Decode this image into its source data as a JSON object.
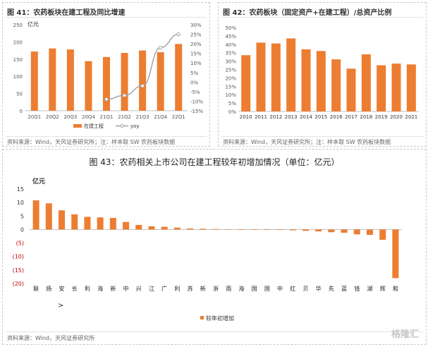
{
  "panel1": {
    "title": "图 41：农药板块在建工程及同比增速",
    "source": "资料来源：Wind，天风证券研究所；注：样本取 SW 农药板块数据"
  },
  "panel2": {
    "title": "图 42：农药板块（固定资产+在建工程）/总资产比例",
    "source": "资料来源：Wind，天风证券研究所；注：样本取 SW 农药板块数据"
  },
  "panel3": {
    "title": "图 43：农药相关上市公司在建工程较年初增加情况（单位：亿元）",
    "source": "资料来源：Wind，天风证券研究所",
    "arrow_text": ">"
  },
  "watermark": "格隆汇",
  "chart_data": [
    {
      "type": "bar",
      "unit_label": "亿元",
      "categories": [
        "20Q1",
        "20Q2",
        "20Q3",
        "20Q4",
        "21Q1",
        "21Q2",
        "21Q3",
        "21Q4",
        "22Q1"
      ],
      "series": [
        {
          "name": "在建工程",
          "type": "bar",
          "color": "#ED7D31",
          "values": [
            172,
            181,
            178,
            144,
            156,
            168,
            175,
            170,
            194
          ]
        },
        {
          "name": "yoy",
          "type": "line",
          "axis": "right",
          "color": "#A5A5A5",
          "values": [
            null,
            null,
            null,
            null,
            -9,
            -7,
            -2,
            18,
            25
          ]
        }
      ],
      "ylim": [
        0,
        250
      ],
      "yticks": [
        0,
        50,
        100,
        150,
        200,
        250
      ],
      "y2lim": [
        -15,
        30
      ],
      "y2ticks": [
        "-15%",
        "-10%",
        "-5%",
        "0%",
        "5%",
        "10%",
        "15%",
        "20%",
        "25%",
        "30%"
      ],
      "legend": [
        "在建工程",
        "yoy"
      ],
      "legend_position": "bottom"
    },
    {
      "type": "bar",
      "categories": [
        "2010",
        "2011",
        "2012",
        "2013",
        "2014",
        "2015",
        "2016",
        "2017",
        "2018",
        "2019",
        "2020",
        "2021"
      ],
      "series": [
        {
          "color": "#ED7D31",
          "values": [
            33.5,
            41,
            40.5,
            43.5,
            37,
            36,
            31,
            25.5,
            34,
            27.5,
            28.5,
            28
          ]
        }
      ],
      "ylim": [
        0,
        50
      ],
      "yticks": [
        "0%",
        "5%",
        "10%",
        "15%",
        "20%",
        "25%",
        "30%",
        "35%",
        "40%",
        "45%",
        "50%"
      ]
    },
    {
      "type": "bar",
      "unit_label": "亿元",
      "categories": [
        "联",
        "扬",
        "安",
        "长",
        "利",
        "海",
        "新",
        "中",
        "兴",
        "江",
        "广",
        "利",
        "苏",
        "新",
        "浙",
        "雨",
        "海",
        "国",
        "国",
        "中",
        "红",
        "贝",
        "华",
        "先",
        "蓝",
        "钱",
        "湖",
        "辉",
        "和"
      ],
      "series": [
        {
          "name": "较年初增加",
          "color": "#ED7D31",
          "values": [
            10.8,
            9.7,
            7.1,
            5.6,
            4.7,
            4.5,
            4.3,
            2.8,
            1.7,
            1.2,
            1.0,
            0.7,
            0.4,
            0.3,
            0.2,
            0.1,
            0.0,
            -0.05,
            -0.1,
            -0.15,
            -0.3,
            -0.5,
            -0.7,
            -1.0,
            -1.2,
            -1.8,
            -2.0,
            -3.8,
            -18.0
          ]
        }
      ],
      "ylim": [
        -20,
        15
      ],
      "yticks": [
        "(20)",
        "(15)",
        "(10)",
        "(5)",
        "0",
        "5",
        "10",
        "15"
      ],
      "legend": [
        "较年初增加"
      ],
      "legend_position": "bottom"
    }
  ]
}
